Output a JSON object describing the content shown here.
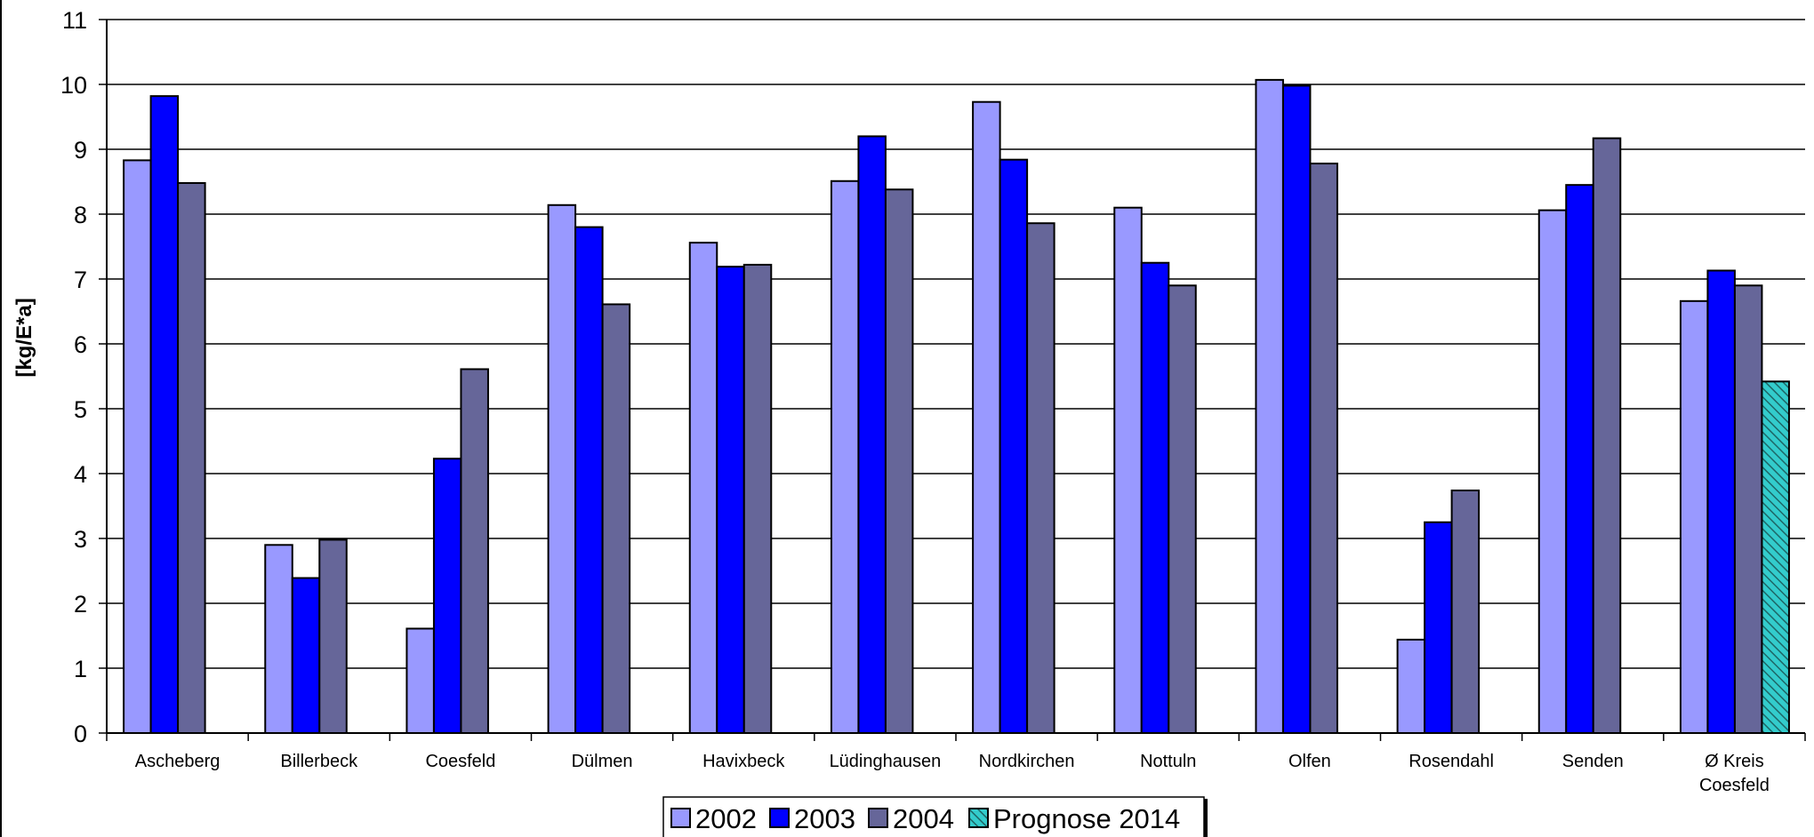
{
  "chart_data": {
    "type": "bar",
    "title": "",
    "xlabel": "",
    "ylabel": "[kg/E*a]",
    "ylim": [
      0,
      11
    ],
    "yticks": [
      0,
      1,
      2,
      3,
      4,
      5,
      6,
      7,
      8,
      9,
      10,
      11
    ],
    "grid": true,
    "legend_position": "bottom",
    "categories": [
      [
        "Ascheberg"
      ],
      [
        "Billerbeck"
      ],
      [
        "Coesfeld"
      ],
      [
        "Dülmen"
      ],
      [
        "Havixbeck"
      ],
      [
        "Lüdinghausen"
      ],
      [
        "Nordkirchen"
      ],
      [
        "Nottuln"
      ],
      [
        "Olfen"
      ],
      [
        "Rosendahl"
      ],
      [
        "Senden"
      ],
      [
        "Ø Kreis",
        "Coesfeld"
      ]
    ],
    "series": [
      {
        "name": "2002",
        "color": "#9999FF",
        "pattern": "solid",
        "values": [
          8.83,
          2.9,
          1.61,
          8.14,
          7.56,
          8.51,
          9.73,
          8.1,
          10.07,
          1.44,
          8.06,
          6.66
        ]
      },
      {
        "name": "2003",
        "color": "#0000FF",
        "pattern": "solid",
        "values": [
          9.82,
          2.39,
          4.23,
          7.8,
          7.19,
          9.2,
          8.84,
          7.25,
          9.98,
          3.25,
          8.45,
          7.13
        ]
      },
      {
        "name": "2004",
        "color": "#666699",
        "pattern": "solid",
        "values": [
          8.48,
          2.98,
          5.61,
          6.61,
          7.22,
          8.38,
          7.86,
          6.9,
          8.78,
          3.74,
          9.17,
          6.9
        ]
      },
      {
        "name": "Prognose 2014",
        "color": "#33CCCC",
        "pattern": "hatched",
        "values": [
          null,
          null,
          null,
          null,
          null,
          null,
          null,
          null,
          null,
          null,
          null,
          5.42
        ]
      }
    ]
  }
}
